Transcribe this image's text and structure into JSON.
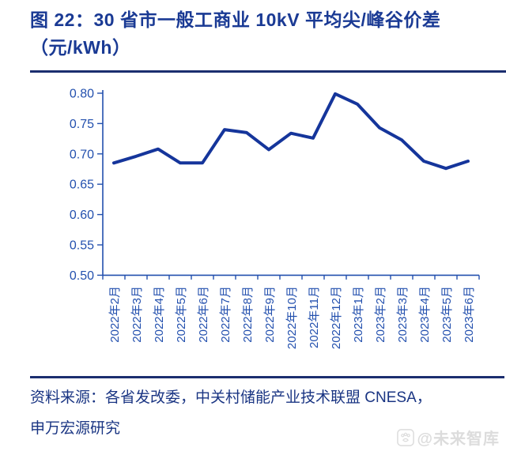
{
  "title": {
    "line1": "图 22：30 省市一般工商业 10kV 平均尖/峰谷价差",
    "line2": "（元/kWh）"
  },
  "source": {
    "line1": "资料来源：各省发改委，中关村储能产业技术联盟 CNESA，",
    "line2": "申万宏源研究"
  },
  "watermark": {
    "icon": "paw-icon",
    "text": "@未来智库",
    "color": "#dcdcdc"
  },
  "colors": {
    "title_text": "#1a3a94",
    "rule": "#1b2e6f",
    "axis": "#2350ae",
    "tick_label": "#2350ae",
    "series_line": "#15359b",
    "source_text": "#1a3583",
    "background": "#ffffff"
  },
  "chart_data": {
    "type": "line",
    "title": "30 省市一般工商业 10kV 平均尖/峰谷价差（元/kWh）",
    "categories": [
      "2022年2月",
      "2022年3月",
      "2022年4月",
      "2022年5月",
      "2022年6月",
      "2022年7月",
      "2022年8月",
      "2022年9月",
      "2022年10月",
      "2022年11月",
      "2022年12月",
      "2023年1月",
      "2023年2月",
      "2023年3月",
      "2023年4月",
      "2023年5月",
      "2023年6月"
    ],
    "series": [
      {
        "name": "平均尖/峰谷价差",
        "values": [
          0.685,
          0.696,
          0.708,
          0.685,
          0.685,
          0.74,
          0.735,
          0.707,
          0.734,
          0.726,
          0.799,
          0.782,
          0.743,
          0.723,
          0.688,
          0.676,
          0.688
        ]
      }
    ],
    "xlabel": "",
    "ylabel": "",
    "ylim": [
      0.5,
      0.8
    ],
    "ytick_step": 0.05,
    "ytick_labels": [
      "0.50",
      "0.55",
      "0.60",
      "0.65",
      "0.70",
      "0.75",
      "0.80"
    ],
    "grid": false,
    "legend_position": "none"
  }
}
